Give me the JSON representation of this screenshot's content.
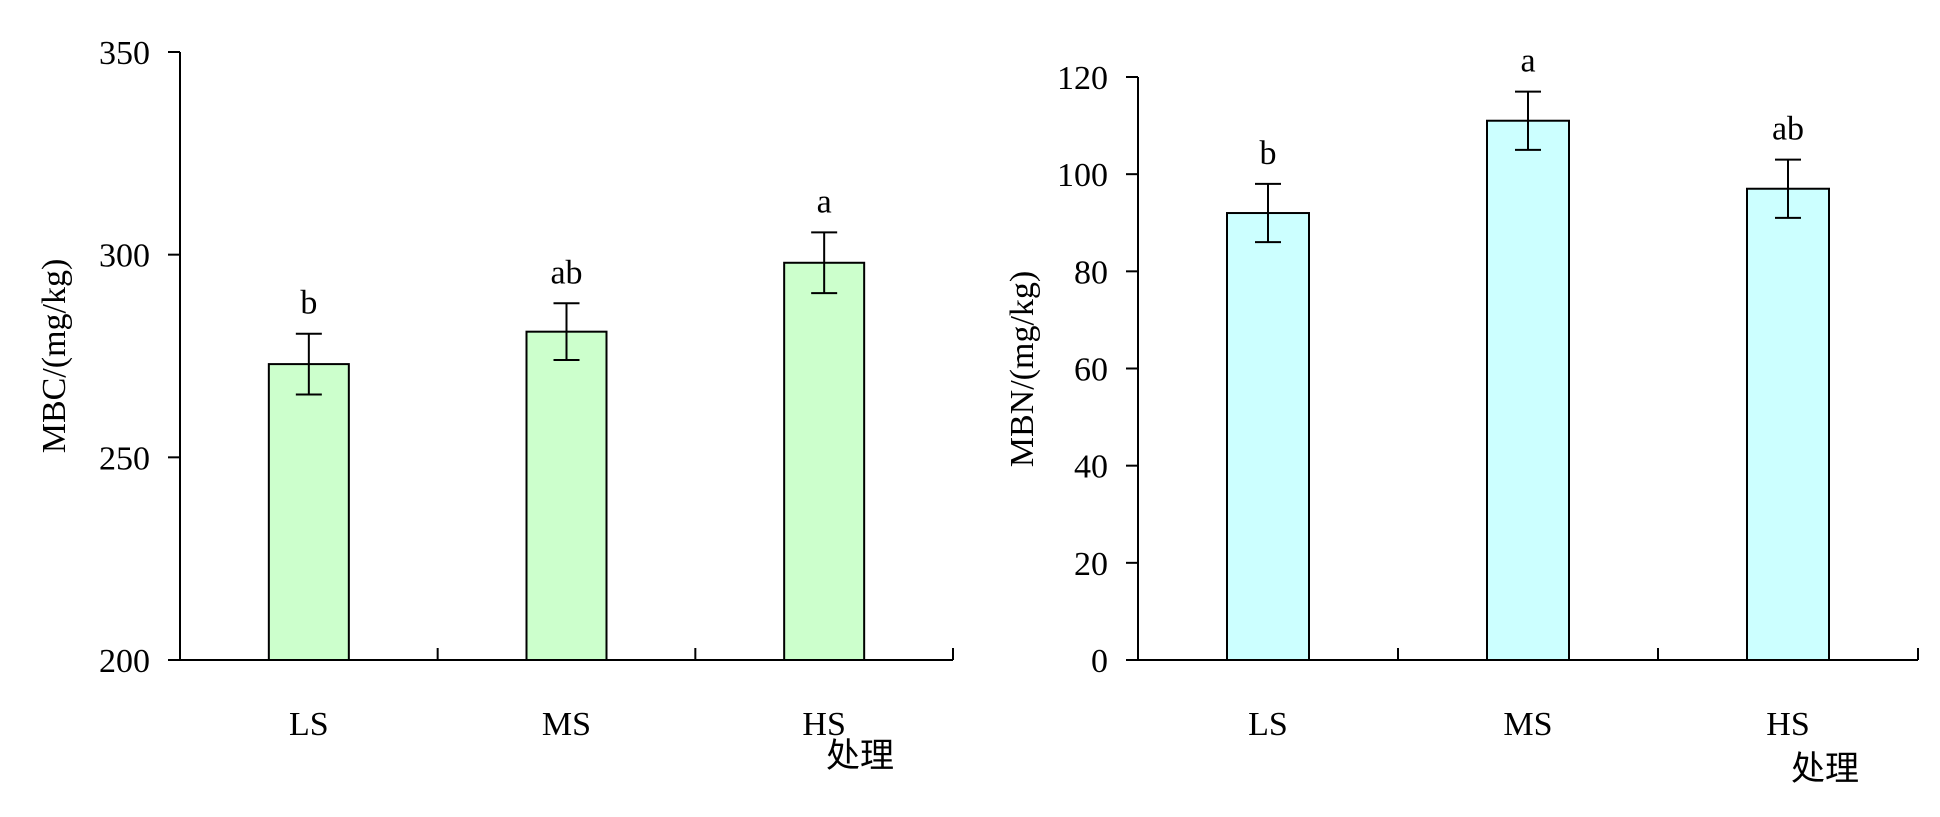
{
  "chart_data": [
    {
      "type": "bar",
      "categories": [
        "LS",
        "MS",
        "HS"
      ],
      "values": [
        273,
        281,
        298
      ],
      "errors": [
        7.5,
        7,
        7.5
      ],
      "significance": [
        "b",
        "ab",
        "a"
      ],
      "title": "",
      "xlabel": "处理",
      "ylabel": "MBC/(mg/kg)",
      "ylim": [
        200,
        350
      ],
      "yticks": [
        200,
        250,
        300,
        350
      ],
      "bar_color": "#ccffcc",
      "grid": false,
      "legend": "none"
    },
    {
      "type": "bar",
      "categories": [
        "LS",
        "MS",
        "HS"
      ],
      "values": [
        92,
        111,
        97
      ],
      "errors": [
        6,
        6,
        6
      ],
      "significance": [
        "b",
        "a",
        "ab"
      ],
      "title": "",
      "xlabel": "处理",
      "ylabel": "MBN/(mg/kg)",
      "ylim": [
        0,
        120
      ],
      "yticks": [
        0,
        20,
        40,
        60,
        80,
        100,
        120
      ],
      "bar_color": "#ccffff",
      "grid": false,
      "legend": "none"
    }
  ]
}
